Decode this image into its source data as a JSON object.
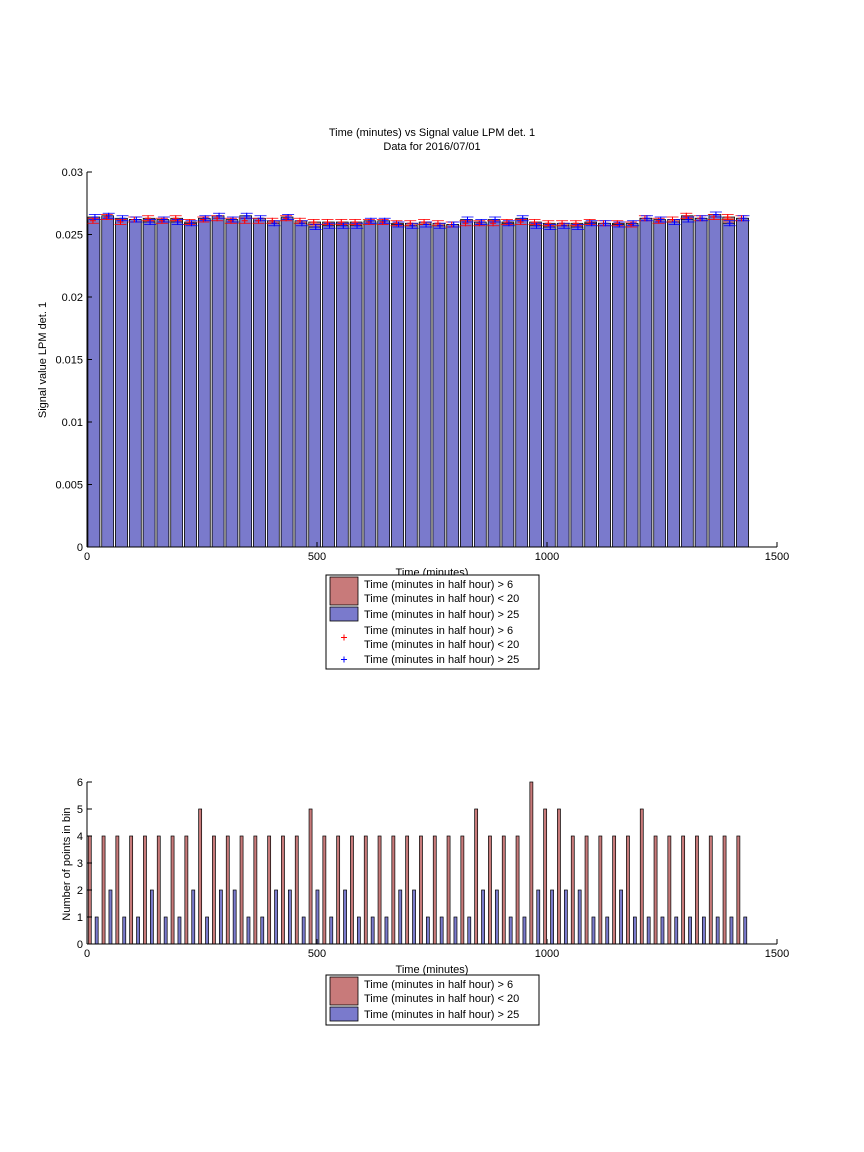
{
  "chart_data": [
    {
      "type": "bar",
      "title": "Time (minutes) vs Signal value LPM det. 1",
      "subtitle": "Data for 2016/07/01",
      "xlabel": "Time (minutes)",
      "ylabel": "Signal value LPM det. 1",
      "xlim": [
        0,
        1500
      ],
      "ylim": [
        0,
        0.03
      ],
      "xticks": [
        "0",
        "500",
        "1000",
        "1500"
      ],
      "yticks": [
        "0",
        "0.005",
        "0.01",
        "0.015",
        "0.02",
        "0.025",
        "0.03"
      ],
      "grid": false,
      "legend_position": "below",
      "legend": [
        "Time (minutes in half hour) > 6\nTime (minutes in half hour) < 20",
        "Time (minutes in half hour) > 25",
        "Time (minutes in half hour) > 6\nTime (minutes in half hour) < 20",
        "Time (minutes in half hour) > 25"
      ],
      "x": [
        15,
        45,
        75,
        105,
        135,
        165,
        195,
        225,
        255,
        285,
        315,
        345,
        375,
        405,
        435,
        465,
        495,
        525,
        555,
        585,
        615,
        645,
        675,
        705,
        735,
        765,
        795,
        825,
        855,
        885,
        915,
        945,
        975,
        1005,
        1035,
        1065,
        1095,
        1125,
        1155,
        1185,
        1215,
        1245,
        1275,
        1305,
        1335,
        1365,
        1395,
        1425
      ],
      "series": [
        {
          "name": "Time (minutes in half hour) > 6\nTime (minutes in half hour) < 20",
          "values": [
            0.0261,
            0.0264,
            0.026,
            0.0262,
            0.0263,
            0.0261,
            0.0263,
            0.026,
            0.0262,
            0.0263,
            0.0261,
            0.0261,
            0.0261,
            0.0261,
            0.0263,
            0.0261,
            0.026,
            0.026,
            0.026,
            0.026,
            0.026,
            0.026,
            0.0259,
            0.0259,
            0.026,
            0.0259,
            0.0258,
            0.0259,
            0.0259,
            0.0259,
            0.026,
            0.026,
            0.026,
            0.0259,
            0.0259,
            0.0259,
            0.026,
            0.0259,
            0.0259,
            0.0258,
            0.0263,
            0.0261,
            0.0262,
            0.0265,
            0.0263,
            0.0264,
            0.0264,
            0.0263
          ]
        },
        {
          "name": "Time (minutes in half hour) > 25",
          "values": [
            0.0264,
            0.0265,
            0.0263,
            0.0262,
            0.026,
            0.0262,
            0.026,
            0.0259,
            0.0263,
            0.0265,
            0.0262,
            0.0265,
            0.0263,
            0.0259,
            0.0264,
            0.0259,
            0.0256,
            0.0257,
            0.0257,
            0.0257,
            0.0261,
            0.0261,
            0.0258,
            0.0257,
            0.0258,
            0.0257,
            0.0258,
            0.0262,
            0.026,
            0.0262,
            0.0259,
            0.0263,
            0.0257,
            0.0256,
            0.0257,
            0.0256,
            0.0259,
            0.0259,
            0.0258,
            0.0259,
            0.0263,
            0.0262,
            0.026,
            0.0262,
            0.0263,
            0.0266,
            0.0259,
            0.0263
          ]
        }
      ],
      "marker_series": [
        {
          "name": "Time (minutes in half hour) > 6\nTime (minutes in half hour) < 20",
          "values": [
            0.0261,
            0.0264,
            0.026,
            0.0262,
            0.0263,
            0.0261,
            0.0263,
            0.026,
            0.0262,
            0.0263,
            0.0261,
            0.0261,
            0.0261,
            0.0261,
            0.0263,
            0.0261,
            0.026,
            0.026,
            0.026,
            0.026,
            0.026,
            0.026,
            0.0259,
            0.0259,
            0.026,
            0.0259,
            0.0258,
            0.0259,
            0.0259,
            0.0259,
            0.026,
            0.026,
            0.026,
            0.0259,
            0.0259,
            0.0259,
            0.026,
            0.0259,
            0.0259,
            0.0258,
            0.0263,
            0.0261,
            0.0262,
            0.0265,
            0.0263,
            0.0264,
            0.0264,
            0.0263
          ]
        },
        {
          "name": "Time (minutes in half hour) > 25",
          "values": [
            0.0264,
            0.0265,
            0.0263,
            0.0262,
            0.026,
            0.0262,
            0.026,
            0.0259,
            0.0263,
            0.0265,
            0.0262,
            0.0265,
            0.0263,
            0.0259,
            0.0264,
            0.0259,
            0.0256,
            0.0257,
            0.0257,
            0.0257,
            0.0261,
            0.0261,
            0.0258,
            0.0257,
            0.0258,
            0.0257,
            0.0258,
            0.0262,
            0.026,
            0.0262,
            0.0259,
            0.0263,
            0.0257,
            0.0256,
            0.0257,
            0.0256,
            0.0259,
            0.0259,
            0.0258,
            0.0259,
            0.0263,
            0.0262,
            0.026,
            0.0262,
            0.0263,
            0.0266,
            0.0259,
            0.0263
          ]
        }
      ],
      "error_halfwidth": 0.0002,
      "colors": {
        "series1": "#c87a7a",
        "series2": "#7a7acc",
        "marker1": "#ff0000",
        "marker2": "#0000ff"
      }
    },
    {
      "type": "bar",
      "title": "",
      "xlabel": "Time (minutes)",
      "ylabel": "Number of points in bin",
      "xlim": [
        0,
        1500
      ],
      "ylim": [
        0,
        6
      ],
      "xticks": [
        "0",
        "500",
        "1000",
        "1500"
      ],
      "yticks": [
        "0",
        "1",
        "2",
        "3",
        "4",
        "5",
        "6"
      ],
      "grid": false,
      "legend_position": "below",
      "legend": [
        "Time (minutes in half hour) > 6\nTime (minutes in half hour) < 20",
        "Time (minutes in half hour) > 25"
      ],
      "x": [
        15,
        45,
        75,
        105,
        135,
        165,
        195,
        225,
        255,
        285,
        315,
        345,
        375,
        405,
        435,
        465,
        495,
        525,
        555,
        585,
        615,
        645,
        675,
        705,
        735,
        765,
        795,
        825,
        855,
        885,
        915,
        945,
        975,
        1005,
        1035,
        1065,
        1095,
        1125,
        1155,
        1185,
        1215,
        1245,
        1275,
        1305,
        1335,
        1365,
        1395,
        1425
      ],
      "series": [
        {
          "name": "Time (minutes in half hour) > 6\nTime (minutes in half hour) < 20",
          "values": [
            4,
            4,
            4,
            4,
            4,
            4,
            4,
            4,
            5,
            4,
            4,
            4,
            4,
            4,
            4,
            4,
            5,
            4,
            4,
            4,
            4,
            4,
            4,
            4,
            4,
            4,
            4,
            4,
            5,
            4,
            4,
            4,
            6,
            5,
            5,
            4,
            4,
            4,
            4,
            4,
            5,
            4,
            4,
            4,
            4,
            4,
            4,
            4
          ]
        },
        {
          "name": "Time (minutes in half hour) > 25",
          "values": [
            1,
            2,
            1,
            1,
            2,
            1,
            1,
            2,
            1,
            2,
            2,
            1,
            1,
            2,
            2,
            1,
            2,
            1,
            2,
            1,
            1,
            1,
            2,
            2,
            1,
            1,
            1,
            1,
            2,
            2,
            1,
            1,
            2,
            2,
            2,
            2,
            1,
            1,
            2,
            1,
            1,
            1,
            1,
            1,
            1,
            1,
            1,
            1
          ]
        }
      ],
      "colors": {
        "series1": "#c87a7a",
        "series2": "#7a7acc"
      }
    }
  ]
}
